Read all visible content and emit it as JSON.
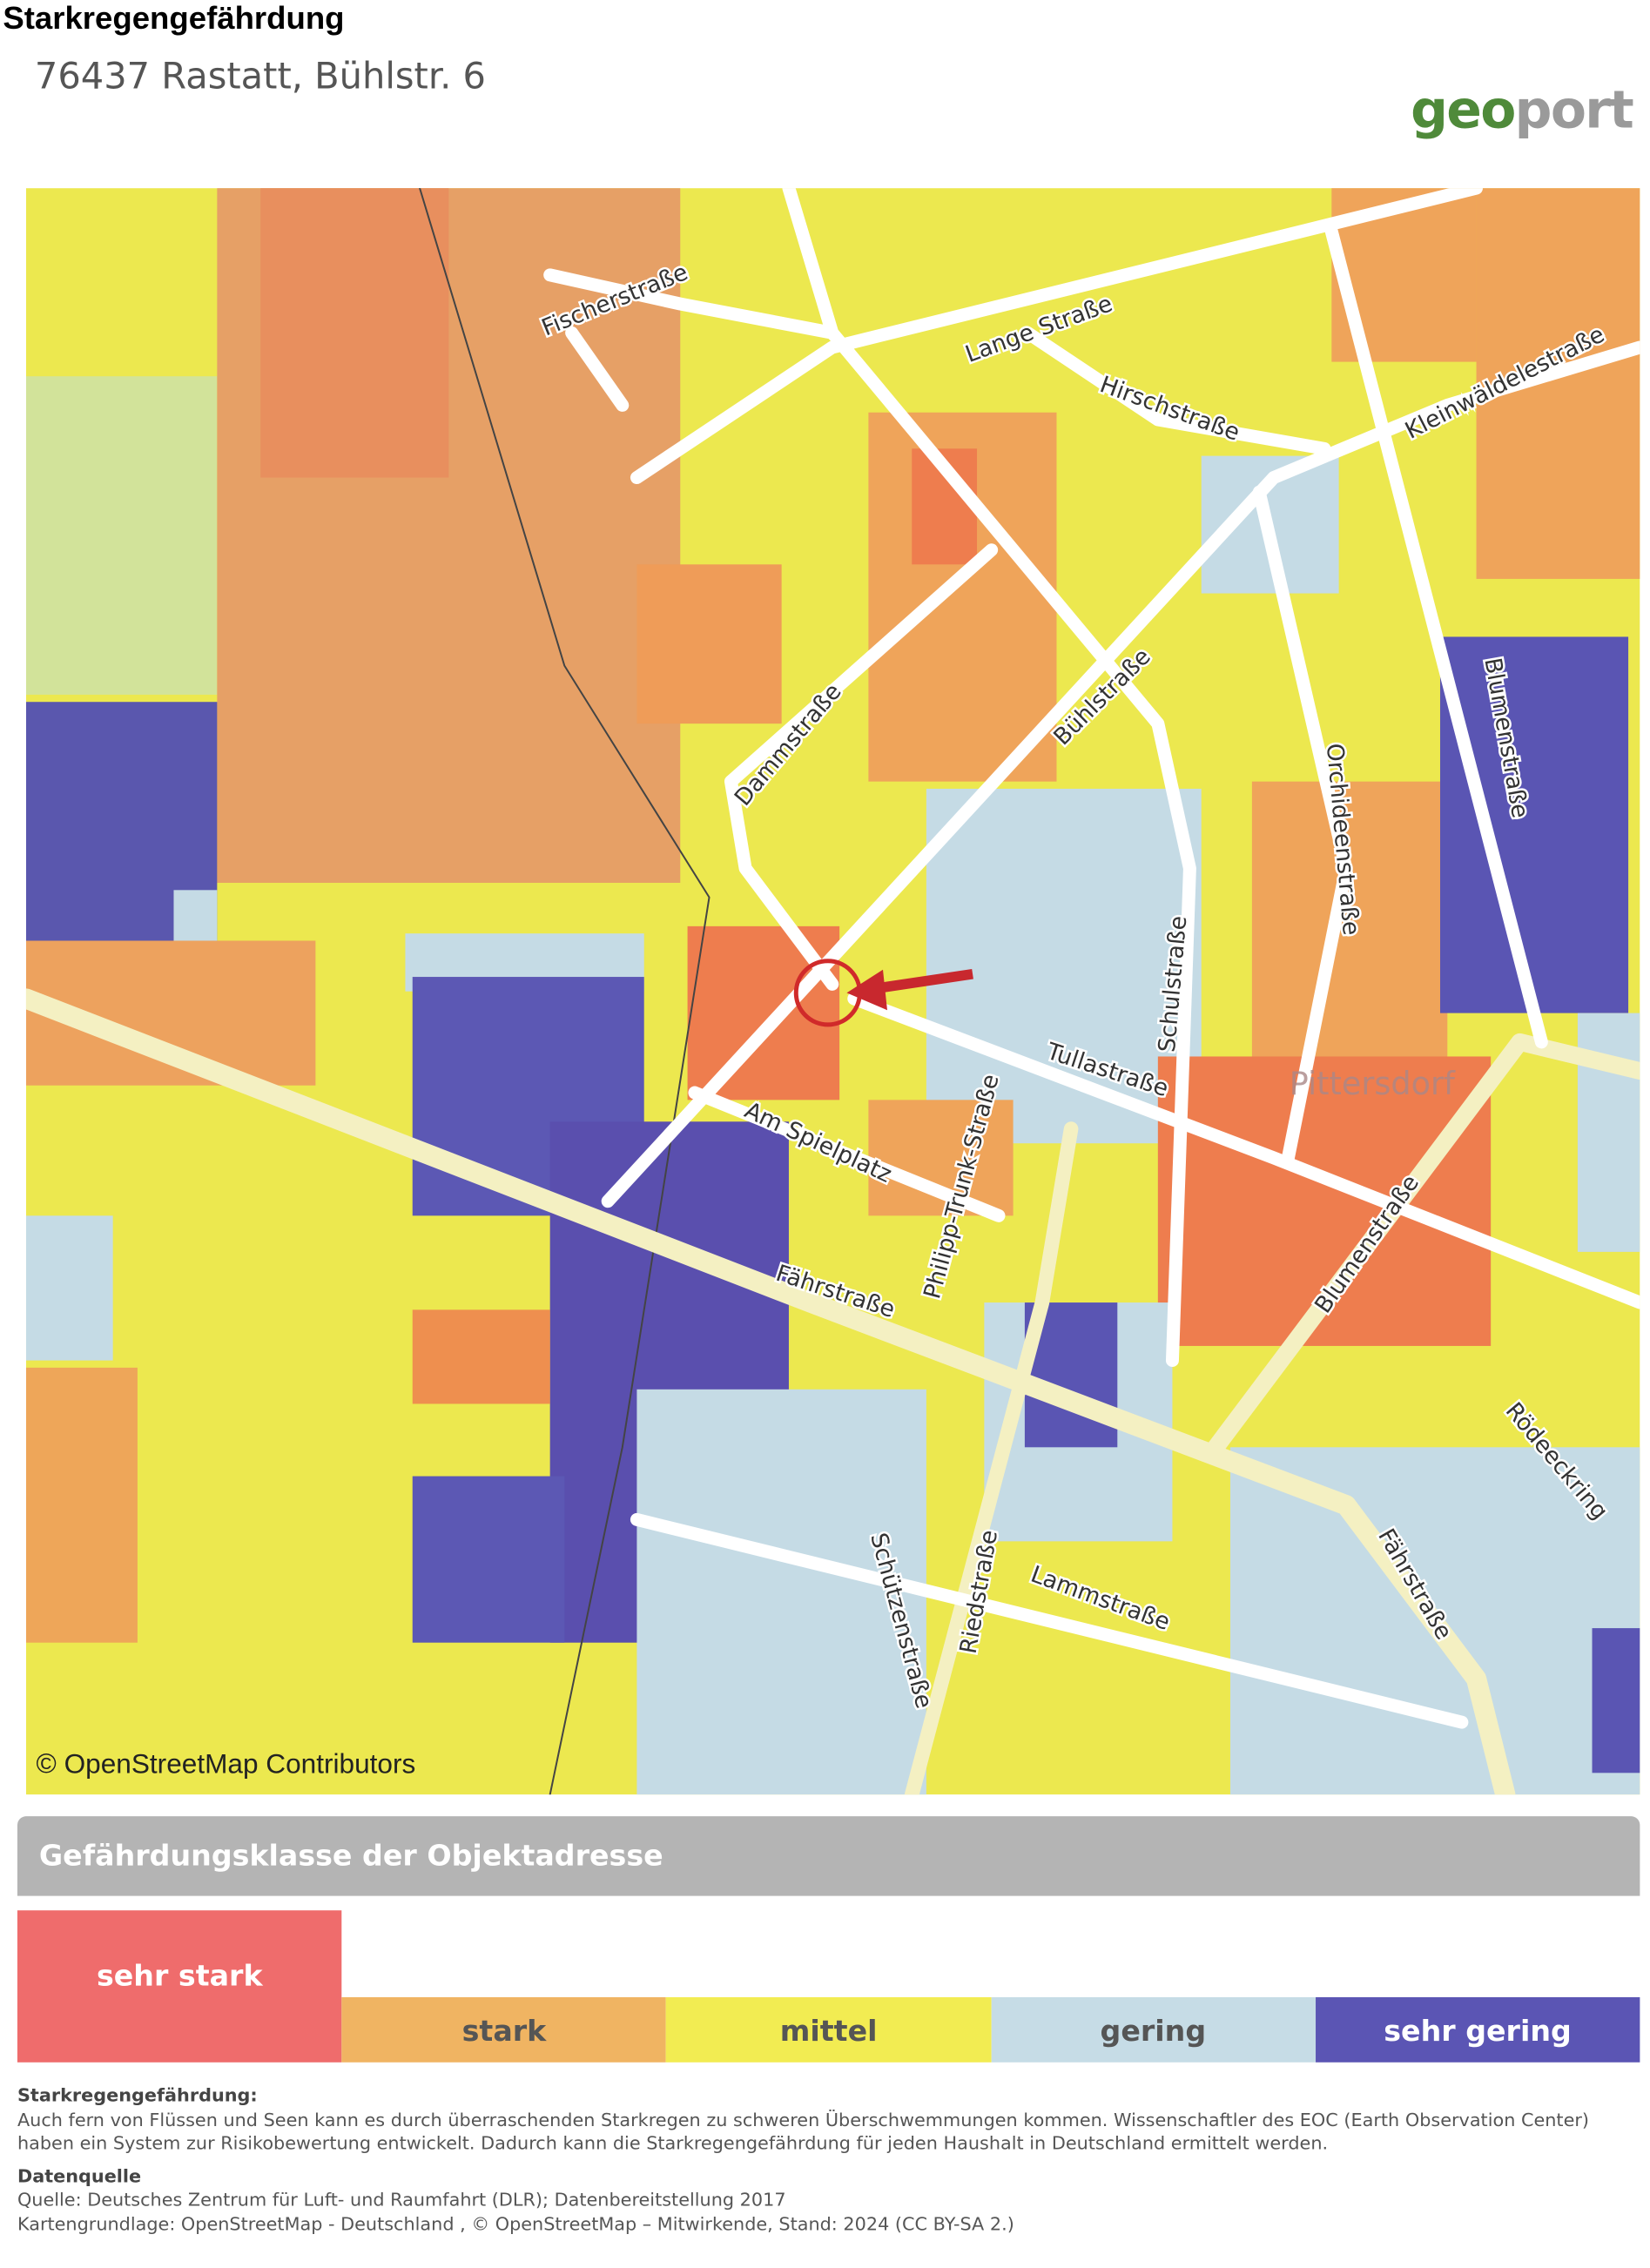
{
  "header": {
    "title": "Starkregengefährdung",
    "address": "76437 Rastatt, Bühlstr. 6",
    "logo": {
      "part1": "geo",
      "part2": "port"
    }
  },
  "map": {
    "streets": [
      "Fischerstraße",
      "Lange Straße",
      "Hirschstraße",
      "Kleinwäldelestraße",
      "Bühlstraße",
      "Dammstraße",
      "Blumenstraße",
      "Orchideenstraße",
      "Schulstraße",
      "Tullastraße",
      "Am Spielplatz",
      "Philipp-Trunk-Straße",
      "Fährstraße",
      "Blumenstraße",
      "Rödeeckring",
      "Lammstraße",
      "Riedstraße",
      "Schützenstraße",
      "Fährstraße"
    ],
    "place": "Pittersdorf",
    "attribution": "© OpenStreetMap Contributors"
  },
  "legend": {
    "title": "Gefährdungsklasse der Objektadresse",
    "classes": [
      "sehr stark",
      "stark",
      "mittel",
      "gering",
      "sehr gering"
    ]
  },
  "info": {
    "heading": "Starkregengefährdung:",
    "text": "Auch fern von Flüssen und Seen kann es durch überraschenden Starkregen zu schweren Überschwemmungen kommen. Wissenschaftler des EOC (Earth Observation Center) haben ein System zur Risikobewertung entwickelt. Dadurch kann die Starkregengefährdung für jeden Haushalt in Deutschland ermittelt werden.",
    "source_heading": "Datenquelle",
    "source_lines": [
      "Quelle: Deutsches Zentrum für Luft- und Raumfahrt (DLR); Datenbereitstellung 2017",
      "Kartengrundlage: OpenStreetMap - Deutschland , © OpenStreetMap – Mitwirkende, Stand: 2024 (CC BY-SA 2.)"
    ]
  }
}
